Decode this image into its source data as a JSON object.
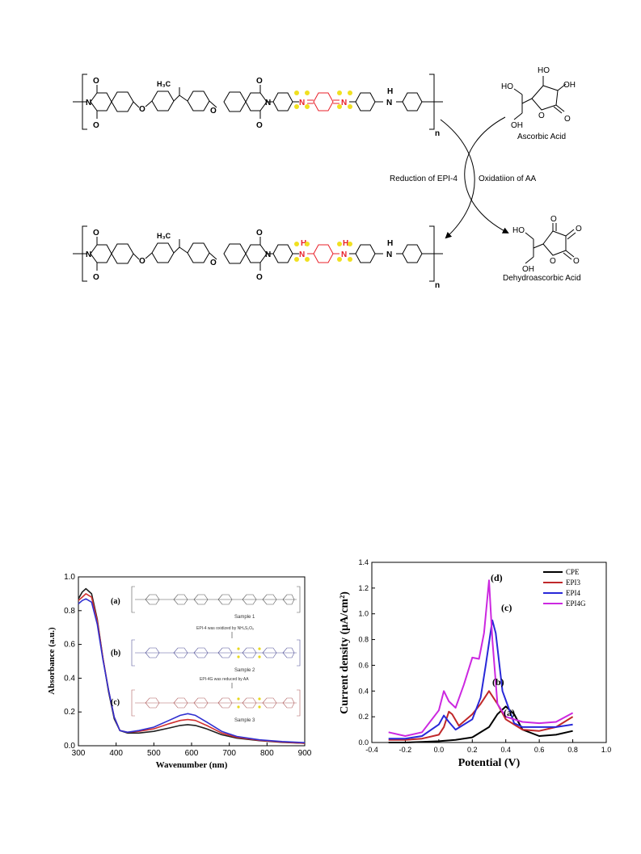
{
  "scheme": {
    "n_top": "n",
    "n_bottom": "n",
    "ch3": "H₃C",
    "atom_N": "N",
    "atom_O": "O",
    "atom_H": "H",
    "atom_HO": "HO",
    "atom_OH": "OH",
    "ascorbic_acid": "Ascorbic Acid",
    "dehydroascorbic_acid": "Dehydroascorbic Acid",
    "reduction_label": "Reduction of EPI-4",
    "oxidation_label": "Oxidatiion of AA",
    "colors": {
      "red": "#e8202a",
      "yellow": "#f0e020",
      "blue": "#2a2ad0"
    }
  },
  "chart_data": [
    {
      "type": "line",
      "xlabel": "Wavenumber (nm)",
      "ylabel": "Absorbance (a.u.)",
      "xlim": [
        300,
        900
      ],
      "ylim": [
        0,
        1.0
      ],
      "xticks": [
        300,
        400,
        500,
        600,
        700,
        800,
        900
      ],
      "yticks": [
        0.0,
        0.2,
        0.4,
        0.6,
        0.8,
        1.0
      ],
      "x": [
        300,
        310,
        320,
        335,
        350,
        365,
        380,
        395,
        410,
        430,
        460,
        500,
        540,
        570,
        590,
        610,
        640,
        680,
        720,
        780,
        840,
        900
      ],
      "series": [
        {
          "color": "#202020",
          "values": [
            0.87,
            0.91,
            0.93,
            0.9,
            0.75,
            0.52,
            0.32,
            0.16,
            0.09,
            0.075,
            0.075,
            0.085,
            0.105,
            0.12,
            0.125,
            0.12,
            0.1,
            0.065,
            0.045,
            0.03,
            0.02,
            0.015
          ]
        },
        {
          "color": "#d03030",
          "values": [
            0.86,
            0.88,
            0.9,
            0.88,
            0.74,
            0.52,
            0.33,
            0.17,
            0.09,
            0.08,
            0.085,
            0.1,
            0.13,
            0.15,
            0.155,
            0.15,
            0.12,
            0.075,
            0.05,
            0.032,
            0.022,
            0.015
          ]
        },
        {
          "color": "#3030d0",
          "values": [
            0.84,
            0.86,
            0.87,
            0.85,
            0.72,
            0.51,
            0.33,
            0.17,
            0.09,
            0.08,
            0.09,
            0.11,
            0.15,
            0.18,
            0.19,
            0.18,
            0.14,
            0.085,
            0.055,
            0.035,
            0.025,
            0.018
          ]
        }
      ],
      "inset": {
        "labels": [
          "(a)",
          "(b)",
          "(c)"
        ],
        "sample_labels": [
          "Sample 1",
          "Sample 2",
          "Sample 3"
        ],
        "arrow_notes": [
          "EPI-4 was oxidized by NH₄S₂O₈",
          "EPI-4G was reduced by AA"
        ]
      }
    },
    {
      "type": "line",
      "xlabel": "Potential (V)",
      "ylabel": "Current density (μA/cm²)",
      "xlim": [
        -0.4,
        1.0
      ],
      "ylim": [
        0.0,
        1.4
      ],
      "xticks": [
        -0.4,
        -0.2,
        0.0,
        0.2,
        0.4,
        0.6,
        0.8,
        1.0
      ],
      "xtick_labels": [
        "-0.4",
        "-0.2",
        "0.0",
        "0.2",
        "0.4",
        "0.6",
        "0.8",
        "1.0"
      ],
      "yticks": [
        0.0,
        0.2,
        0.4,
        0.6,
        0.8,
        1.0,
        1.2,
        1.4
      ],
      "legend_position": "top-right",
      "series": [
        {
          "name": "CPE",
          "color": "#000000",
          "x": [
            -0.3,
            -0.2,
            -0.1,
            0.0,
            0.1,
            0.2,
            0.3,
            0.35,
            0.4,
            0.45,
            0.5,
            0.6,
            0.7,
            0.8
          ],
          "y": [
            0.0,
            0.0,
            0.005,
            0.01,
            0.02,
            0.04,
            0.12,
            0.22,
            0.28,
            0.22,
            0.1,
            0.05,
            0.06,
            0.09
          ]
        },
        {
          "name": "EPI3",
          "color": "#c0282a",
          "x": [
            -0.3,
            -0.2,
            -0.1,
            0.0,
            0.03,
            0.06,
            0.08,
            0.12,
            0.2,
            0.25,
            0.3,
            0.35,
            0.4,
            0.5,
            0.6,
            0.7,
            0.8
          ],
          "y": [
            0.02,
            0.02,
            0.03,
            0.06,
            0.12,
            0.24,
            0.22,
            0.13,
            0.22,
            0.3,
            0.4,
            0.3,
            0.18,
            0.1,
            0.09,
            0.12,
            0.2
          ]
        },
        {
          "name": "EPI4",
          "color": "#2828d8",
          "x": [
            -0.3,
            -0.2,
            -0.1,
            0.0,
            0.03,
            0.06,
            0.1,
            0.2,
            0.25,
            0.28,
            0.32,
            0.34,
            0.38,
            0.45,
            0.5,
            0.6,
            0.7,
            0.8
          ],
          "y": [
            0.03,
            0.03,
            0.05,
            0.14,
            0.21,
            0.16,
            0.1,
            0.18,
            0.35,
            0.6,
            0.95,
            0.85,
            0.4,
            0.15,
            0.12,
            0.12,
            0.12,
            0.14
          ]
        },
        {
          "name": "EPI4G",
          "color": "#cc28e0",
          "x": [
            -0.3,
            -0.2,
            -0.1,
            0.0,
            0.03,
            0.06,
            0.1,
            0.15,
            0.2,
            0.24,
            0.27,
            0.3,
            0.32,
            0.35,
            0.4,
            0.5,
            0.6,
            0.7,
            0.8
          ],
          "y": [
            0.08,
            0.05,
            0.08,
            0.25,
            0.4,
            0.32,
            0.27,
            0.45,
            0.66,
            0.65,
            0.85,
            1.26,
            0.8,
            0.3,
            0.2,
            0.16,
            0.15,
            0.16,
            0.23
          ]
        }
      ],
      "annotations": [
        "(a)",
        "(b)",
        "(c)",
        "(d)"
      ]
    }
  ]
}
